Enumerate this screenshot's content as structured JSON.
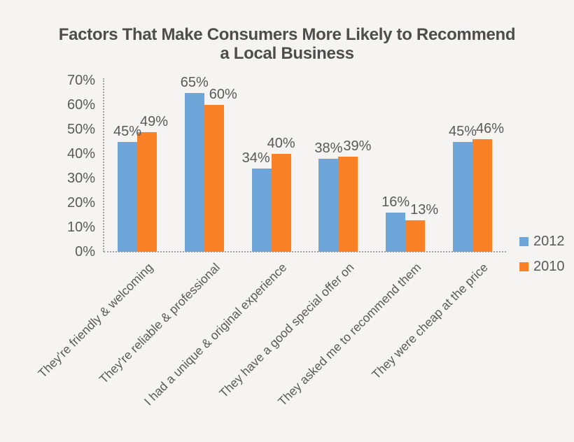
{
  "page": {
    "background": "#F5F4F3"
  },
  "chart_data": {
    "type": "bar",
    "title": "Factors That Make Consumers More Likely to Recommend a Local Business",
    "title_lines": [
      "Factors That Make Consumers More Likely to Recommend",
      "a Local Business"
    ],
    "categories": [
      "They're friendly & welcoming",
      "They're reliable & professional",
      "I had a unique & original experience",
      "They have a good special offer on",
      "They asked me to recommend them",
      "They were cheap at the price"
    ],
    "series": [
      {
        "name": "2012",
        "color": "#6EA6D9",
        "values": [
          45,
          65,
          34,
          38,
          16,
          45
        ]
      },
      {
        "name": "2010",
        "color": "#FB8126",
        "values": [
          49,
          60,
          40,
          39,
          13,
          46
        ]
      }
    ],
    "value_suffix": "%",
    "y_axis": {
      "min": 0,
      "max": 70,
      "step": 10,
      "tick_labels": [
        "0%",
        "10%",
        "20%",
        "30%",
        "40%",
        "50%",
        "60%",
        "70%"
      ]
    },
    "legend": {
      "position": "right",
      "entries": [
        {
          "label": "2012",
          "color": "#6EA6D9"
        },
        {
          "label": "2010",
          "color": "#FB8126"
        }
      ]
    },
    "gridlines": false,
    "axes_style": "dotted",
    "text_color": "#595959",
    "axis_color": "#A3A3A3",
    "label_dx": [
      [
        0,
        0,
        -8,
        0,
        0,
        0
      ],
      [
        10,
        13,
        0,
        13,
        13,
        11
      ]
    ]
  }
}
